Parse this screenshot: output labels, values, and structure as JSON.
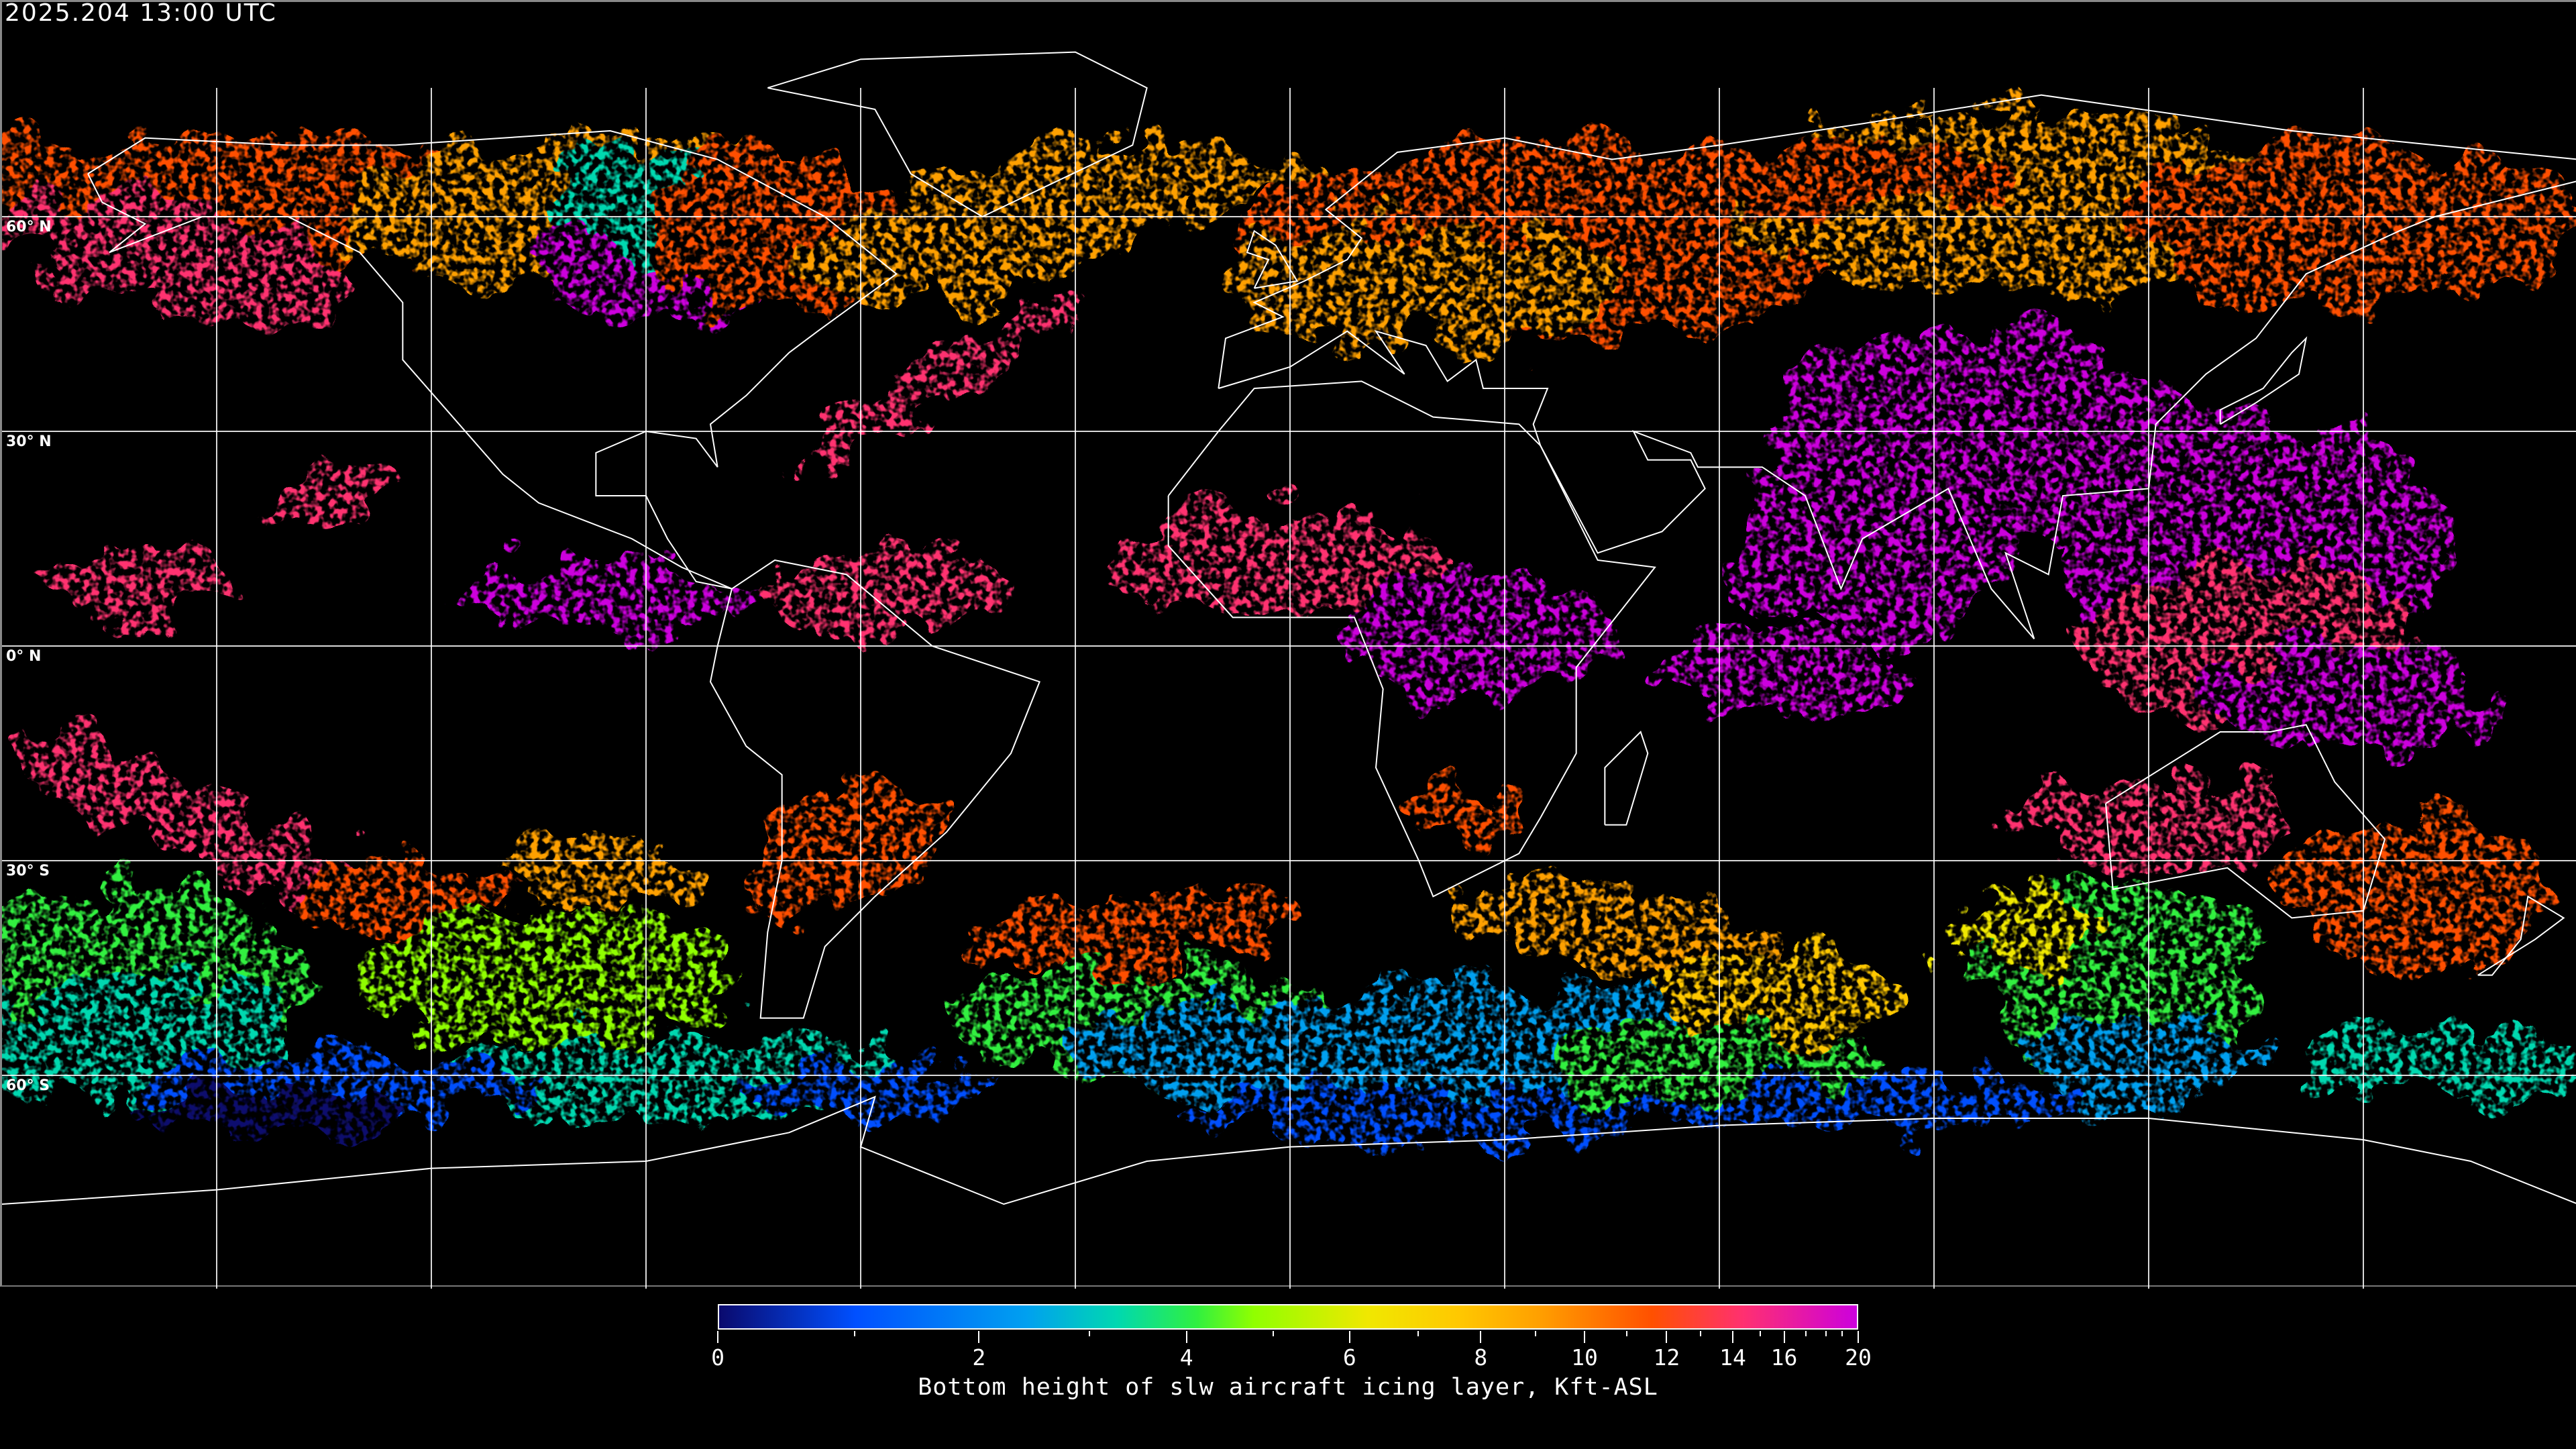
{
  "header": {
    "timestamp": "2025.204 13:00 UTC"
  },
  "map": {
    "lat_labels": [
      "60° N",
      "30° N",
      "0° N",
      "30° S",
      "60° S"
    ],
    "grid_color": "#ffffff",
    "coastline_color": "#ffffff",
    "background": "#000000"
  },
  "colorbar": {
    "label": "Bottom height of slw aircraft icing layer, Kft-ASL",
    "range": [
      0,
      20
    ],
    "major_ticks": [
      "0",
      "2",
      "4",
      "6",
      "8",
      "10",
      "12",
      "14",
      "16",
      "20"
    ],
    "colors": [
      "#0a0a6e",
      "#0050ff",
      "#00a0f0",
      "#00d8b0",
      "#30f040",
      "#90ff00",
      "#f0e800",
      "#ffc800",
      "#ffa000",
      "#ff5000",
      "#ff3070",
      "#cc00dd"
    ]
  }
}
